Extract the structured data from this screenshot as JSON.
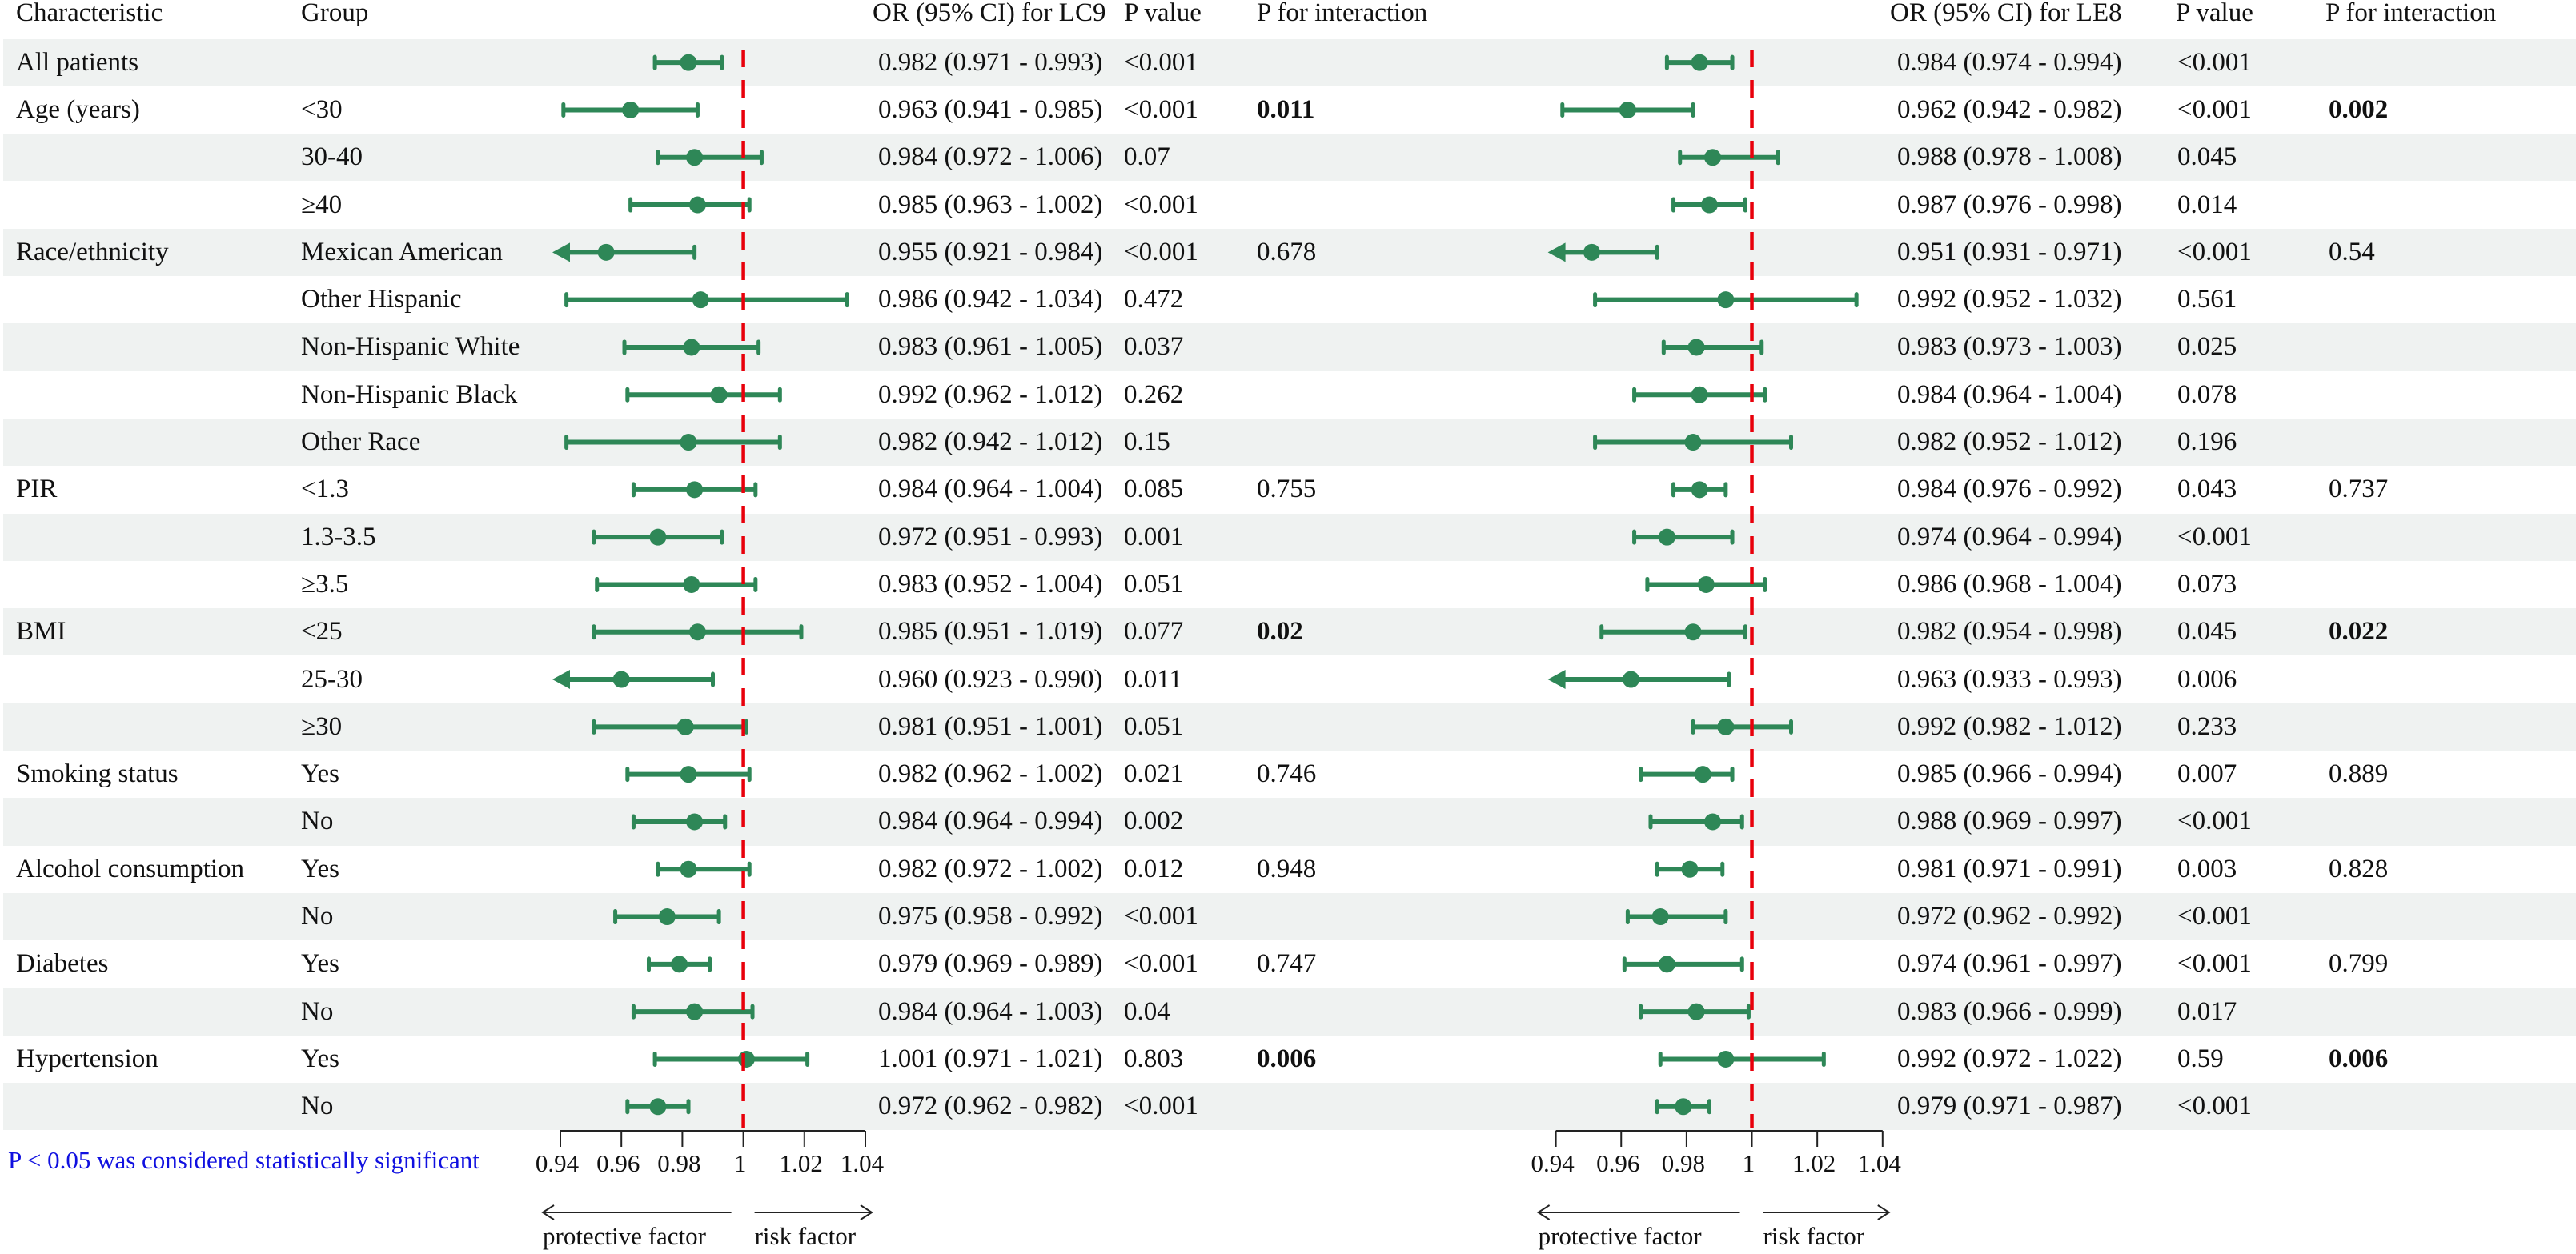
{
  "chart_data": {
    "type": "forest",
    "headers": {
      "characteristic": "Characteristic",
      "group": "Group",
      "lc9_or": "OR (95% CI) for LC9",
      "lc9_p": "P value",
      "lc9_pint": "P for interaction",
      "le8_or": "OR (95% CI) for LE8",
      "le8_p": "P value",
      "le8_pint": "P for interaction"
    },
    "reference_line": 1,
    "axis": {
      "xlim": [
        0.94,
        1.04
      ],
      "ticks": [
        "0.94",
        "0.96",
        "0.98",
        "1",
        "1.02",
        "1.04"
      ],
      "left_label": "protective factor",
      "right_label": "risk factor"
    },
    "colors": {
      "ci": "#2e8757",
      "reference": "#e8000b",
      "stripe": "#eff2f1",
      "note": "#1010e0"
    },
    "rows": [
      {
        "c": "All patients",
        "g": "",
        "lc9": {
          "or": "0.982",
          "lo": "0.971",
          "hi": "0.993",
          "p": "<0.001",
          "pi": ""
        },
        "le8": {
          "or": "0.984",
          "lo": "0.974",
          "hi": "0.994",
          "p": "<0.001",
          "pi": ""
        }
      },
      {
        "c": "Age (years)",
        "g": "<30",
        "lc9": {
          "or": "0.963",
          "lo": "0.941",
          "hi": "0.985",
          "p": "<0.001",
          "pi": "0.011"
        },
        "le8": {
          "or": "0.962",
          "lo": "0.942",
          "hi": "0.982",
          "p": "<0.001",
          "pi": "0.002"
        }
      },
      {
        "c": "",
        "g": "30-40",
        "lc9": {
          "or": "0.984",
          "lo": "0.972",
          "hi": "1.006",
          "p": "0.07",
          "pi": ""
        },
        "le8": {
          "or": "0.988",
          "lo": "0.978",
          "hi": "1.008",
          "p": "0.045",
          "pi": ""
        }
      },
      {
        "c": "",
        "g": "≥40",
        "lc9": {
          "or": "0.985",
          "lo": "0.963",
          "hi": "1.002",
          "p": "<0.001",
          "pi": ""
        },
        "le8": {
          "or": "0.987",
          "lo": "0.976",
          "hi": "0.998",
          "p": "0.014",
          "pi": ""
        }
      },
      {
        "c": "Race/ethnicity",
        "g": "Mexican American",
        "lc9": {
          "or": "0.955",
          "lo": "0.921",
          "hi": "0.984",
          "p": "<0.001",
          "pi": "0.678"
        },
        "le8": {
          "or": "0.951",
          "lo": "0.931",
          "hi": "0.971",
          "p": "<0.001",
          "pi": "0.54"
        }
      },
      {
        "c": "",
        "g": "Other Hispanic",
        "lc9": {
          "or": "0.986",
          "lo": "0.942",
          "hi": "1.034",
          "p": "0.472",
          "pi": ""
        },
        "le8": {
          "or": "0.992",
          "lo": "0.952",
          "hi": "1.032",
          "p": "0.561",
          "pi": ""
        }
      },
      {
        "c": "",
        "g": "Non-Hispanic White",
        "lc9": {
          "or": "0.983",
          "lo": "0.961",
          "hi": "1.005",
          "p": "0.037",
          "pi": ""
        },
        "le8": {
          "or": "0.983",
          "lo": "0.973",
          "hi": "1.003",
          "p": "0.025",
          "pi": ""
        }
      },
      {
        "c": "",
        "g": "Non-Hispanic Black",
        "lc9": {
          "or": "0.992",
          "lo": "0.962",
          "hi": "1.012",
          "p": "0.262",
          "pi": ""
        },
        "le8": {
          "or": "0.984",
          "lo": "0.964",
          "hi": "1.004",
          "p": "0.078",
          "pi": ""
        }
      },
      {
        "c": "",
        "g": "Other Race",
        "lc9": {
          "or": "0.982",
          "lo": "0.942",
          "hi": "1.012",
          "p": "0.15",
          "pi": ""
        },
        "le8": {
          "or": "0.982",
          "lo": "0.952",
          "hi": "1.012",
          "p": "0.196",
          "pi": ""
        }
      },
      {
        "c": "PIR",
        "g": "<1.3",
        "lc9": {
          "or": "0.984",
          "lo": "0.964",
          "hi": "1.004",
          "p": "0.085",
          "pi": "0.755"
        },
        "le8": {
          "or": "0.984",
          "lo": "0.976",
          "hi": "0.992",
          "p": "0.043",
          "pi": "0.737"
        }
      },
      {
        "c": "",
        "g": "1.3-3.5",
        "lc9": {
          "or": "0.972",
          "lo": "0.951",
          "hi": "0.993",
          "p": "0.001",
          "pi": ""
        },
        "le8": {
          "or": "0.974",
          "lo": "0.964",
          "hi": "0.994",
          "p": "<0.001",
          "pi": ""
        }
      },
      {
        "c": "",
        "g": "≥3.5",
        "lc9": {
          "or": "0.983",
          "lo": "0.952",
          "hi": "1.004",
          "p": "0.051",
          "pi": ""
        },
        "le8": {
          "or": "0.986",
          "lo": "0.968",
          "hi": "1.004",
          "p": "0.073",
          "pi": ""
        }
      },
      {
        "c": "BMI",
        "g": "<25",
        "lc9": {
          "or": "0.985",
          "lo": "0.951",
          "hi": "1.019",
          "p": "0.077",
          "pi": "0.02"
        },
        "le8": {
          "or": "0.982",
          "lo": "0.954",
          "hi": "0.998",
          "p": "0.045",
          "pi": "0.022"
        }
      },
      {
        "c": "",
        "g": "25-30",
        "lc9": {
          "or": "0.960",
          "lo": "0.923",
          "hi": "0.990",
          "p": "0.011",
          "pi": ""
        },
        "le8": {
          "or": "0.963",
          "lo": "0.933",
          "hi": "0.993",
          "p": "0.006",
          "pi": ""
        }
      },
      {
        "c": "",
        "g": "≥30",
        "lc9": {
          "or": "0.981",
          "lo": "0.951",
          "hi": "1.001",
          "p": "0.051",
          "pi": ""
        },
        "le8": {
          "or": "0.992",
          "lo": "0.982",
          "hi": "1.012",
          "p": "0.233",
          "pi": ""
        }
      },
      {
        "c": "Smoking status",
        "g": "Yes",
        "lc9": {
          "or": "0.982",
          "lo": "0.962",
          "hi": "1.002",
          "p": "0.021",
          "pi": "0.746"
        },
        "le8": {
          "or": "0.985",
          "lo": "0.966",
          "hi": "0.994",
          "p": "0.007",
          "pi": "0.889"
        }
      },
      {
        "c": "",
        "g": "No",
        "lc9": {
          "or": "0.984",
          "lo": "0.964",
          "hi": "0.994",
          "p": "0.002",
          "pi": ""
        },
        "le8": {
          "or": "0.988",
          "lo": "0.969",
          "hi": "0.997",
          "p": "<0.001",
          "pi": ""
        }
      },
      {
        "c": "Alcohol consumption",
        "g": "Yes",
        "lc9": {
          "or": "0.982",
          "lo": "0.972",
          "hi": "1.002",
          "p": "0.012",
          "pi": "0.948"
        },
        "le8": {
          "or": "0.981",
          "lo": "0.971",
          "hi": "0.991",
          "p": "0.003",
          "pi": "0.828"
        }
      },
      {
        "c": "",
        "g": "No",
        "lc9": {
          "or": "0.975",
          "lo": "0.958",
          "hi": "0.992",
          "p": "<0.001",
          "pi": ""
        },
        "le8": {
          "or": "0.972",
          "lo": "0.962",
          "hi": "0.992",
          "p": "<0.001",
          "pi": ""
        }
      },
      {
        "c": "Diabetes",
        "g": "Yes",
        "lc9": {
          "or": "0.979",
          "lo": "0.969",
          "hi": "0.989",
          "p": "<0.001",
          "pi": "0.747"
        },
        "le8": {
          "or": "0.974",
          "lo": "0.961",
          "hi": "0.997",
          "p": "<0.001",
          "pi": "0.799"
        }
      },
      {
        "c": "",
        "g": "No",
        "lc9": {
          "or": "0.984",
          "lo": "0.964",
          "hi": "1.003",
          "p": "0.04",
          "pi": ""
        },
        "le8": {
          "or": "0.983",
          "lo": "0.966",
          "hi": "0.999",
          "p": "0.017",
          "pi": ""
        }
      },
      {
        "c": "Hypertension",
        "g": "Yes",
        "lc9": {
          "or": "1.001",
          "lo": "0.971",
          "hi": "1.021",
          "p": "0.803",
          "pi": "0.006"
        },
        "le8": {
          "or": "0.992",
          "lo": "0.972",
          "hi": "1.022",
          "p": "0.59",
          "pi": "0.006"
        }
      },
      {
        "c": "",
        "g": "No",
        "lc9": {
          "or": "0.972",
          "lo": "0.962",
          "hi": "0.982",
          "p": "<0.001",
          "pi": ""
        },
        "le8": {
          "or": "0.979",
          "lo": "0.971",
          "hi": "0.987",
          "p": "<0.001",
          "pi": ""
        }
      }
    ]
  },
  "footnote": "P < 0.05 was considered statistically significant"
}
